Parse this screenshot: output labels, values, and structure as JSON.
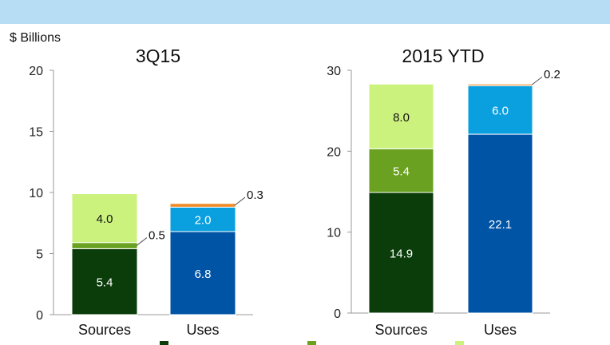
{
  "unit_label": "$ Billions",
  "colors": {
    "banner": "#b7ddf4",
    "dark_green": "#0b3d0b",
    "mid_green": "#6aa121",
    "light_green": "#ccf27e",
    "blue": "#0054a6",
    "light_blue": "#0a9fde",
    "orange": "#f08a24"
  },
  "chart_data": [
    {
      "type": "bar",
      "stacked": true,
      "title": "3Q15",
      "categories": [
        "Sources",
        "Uses"
      ],
      "ylim": [
        0,
        20
      ],
      "yticks": [
        0,
        5,
        10,
        15,
        20
      ],
      "grid": false,
      "segments": [
        [
          {
            "value": 5.4,
            "label": "5.4",
            "color": "dark_green",
            "text_color": "#ffffff",
            "label_position": "inside"
          },
          {
            "value": 0.5,
            "label": "0.5",
            "color": "mid_green",
            "text_color": "#111111",
            "label_position": "leader"
          },
          {
            "value": 4.0,
            "label": "4.0",
            "color": "light_green",
            "text_color": "#111111",
            "label_position": "inside"
          }
        ],
        [
          {
            "value": 6.8,
            "label": "6.8",
            "color": "blue",
            "text_color": "#ffffff",
            "label_position": "inside"
          },
          {
            "value": 2.0,
            "label": "2.0",
            "color": "light_blue",
            "text_color": "#ffffff",
            "label_position": "inside"
          },
          {
            "value": 0.3,
            "label": "0.3",
            "color": "orange",
            "text_color": "#111111",
            "label_position": "leader"
          }
        ]
      ]
    },
    {
      "type": "bar",
      "stacked": true,
      "title": "2015 YTD",
      "categories": [
        "Sources",
        "Uses"
      ],
      "ylim": [
        0,
        30
      ],
      "yticks": [
        0,
        10,
        20,
        30
      ],
      "grid": false,
      "segments": [
        [
          {
            "value": 14.9,
            "label": "14.9",
            "color": "dark_green",
            "text_color": "#ffffff",
            "label_position": "inside"
          },
          {
            "value": 5.4,
            "label": "5.4",
            "color": "mid_green",
            "text_color": "#ffffff",
            "label_position": "inside"
          },
          {
            "value": 8.0,
            "label": "8.0",
            "color": "light_green",
            "text_color": "#111111",
            "label_position": "inside"
          }
        ],
        [
          {
            "value": 22.1,
            "label": "22.1",
            "color": "blue",
            "text_color": "#ffffff",
            "label_position": "inside"
          },
          {
            "value": 6.0,
            "label": "6.0",
            "color": "light_blue",
            "text_color": "#ffffff",
            "label_position": "inside"
          },
          {
            "value": 0.2,
            "label": "0.2",
            "color": "orange",
            "text_color": "#111111",
            "label_position": "leader"
          }
        ]
      ]
    }
  ],
  "legend_partial": [
    {
      "color": "dark_green"
    },
    {
      "color": "mid_green"
    },
    {
      "color": "light_green"
    }
  ]
}
